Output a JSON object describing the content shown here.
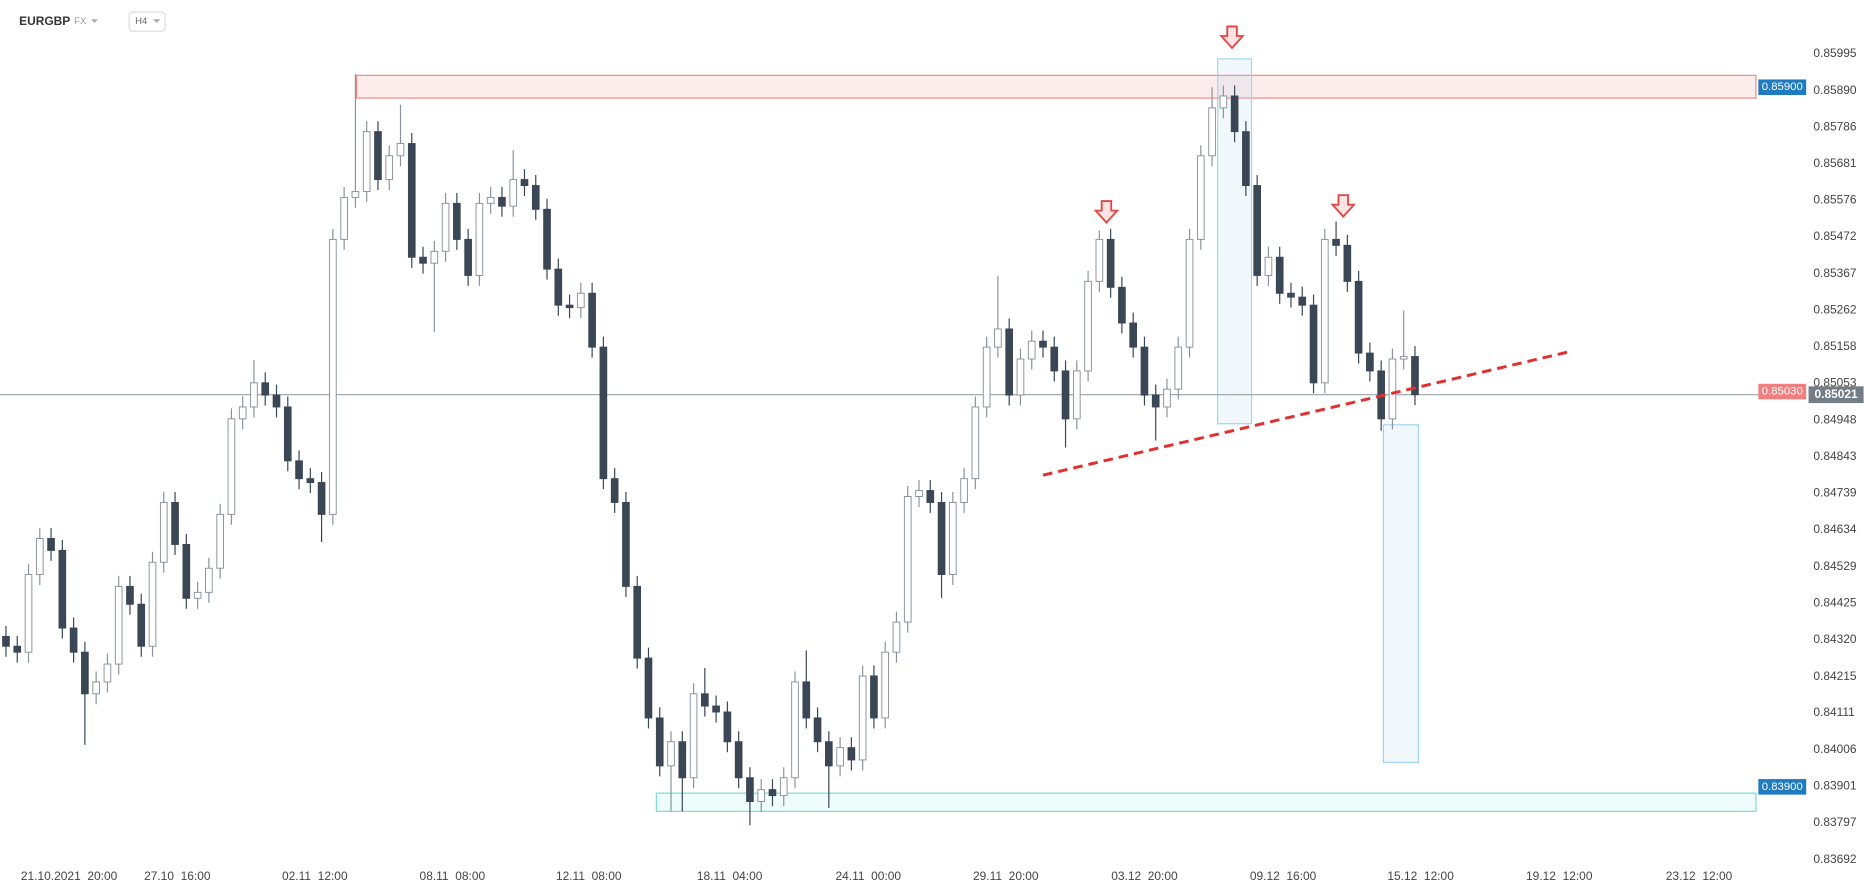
{
  "chart_data": {
    "type": "candlestick",
    "symbol": "EURGBP",
    "market": "FX",
    "timeframe": "H4",
    "up_color": "#ffffff",
    "up_stroke": "#8a939c",
    "down_color": "#3b4754",
    "grid": false,
    "open": [
      0.8433,
      0.84302,
      0.84285,
      0.84507,
      0.8461,
      0.84576,
      0.84354,
      0.84285,
      0.84166,
      0.842,
      0.84251,
      0.84473,
      0.84422,
      0.84302,
      0.84542,
      0.84713,
      0.84593,
      0.84439,
      0.84456,
      0.84525,
      0.84679,
      0.84952,
      0.84986,
      0.85055,
      0.8502,
      0.84986,
      0.84832,
      0.84781,
      0.8477,
      0.84679,
      0.85465,
      0.85585,
      0.85602,
      0.85773,
      0.85636,
      0.85704,
      0.85739,
      0.85414,
      0.85397,
      0.85431,
      0.85568,
      0.85465,
      0.85362,
      0.85568,
      0.85585,
      0.8556,
      0.85636,
      0.85619,
      0.85551,
      0.8538,
      0.85277,
      0.8527,
      0.85311,
      0.85157,
      0.84781,
      0.84713,
      0.84473,
      0.84268,
      0.84097,
      0.8396,
      0.84029,
      0.83926,
      0.84166,
      0.84131,
      0.84114,
      0.84029,
      0.83926,
      0.83858,
      0.83892,
      0.83875,
      0.83926,
      0.842,
      0.84097,
      0.84029,
      0.8396,
      0.84012,
      0.83977,
      0.84217,
      0.84097,
      0.84285,
      0.84371,
      0.8473,
      0.84747,
      0.84713,
      0.84507,
      0.84713,
      0.84781,
      0.84986,
      0.85157,
      0.85209,
      0.8502,
      0.85123,
      0.85174,
      0.85157,
      0.85089,
      0.84952,
      0.85089,
      0.85345,
      0.85465,
      0.85328,
      0.85226,
      0.85157,
      0.8502,
      0.84986,
      0.85037,
      0.85157,
      0.85465,
      0.85704,
      0.85841,
      0.85875,
      0.85773,
      0.85619,
      0.85362,
      0.85414,
      0.85311,
      0.853,
      0.85277,
      0.85055,
      0.85465,
      0.85448,
      0.85345,
      0.8514,
      0.85089,
      0.84952,
      0.85123,
      0.8513
    ],
    "high": [
      0.8436,
      0.84332,
      0.84537,
      0.8464,
      0.8464,
      0.84606,
      0.84384,
      0.84315,
      0.8423,
      0.84281,
      0.84503,
      0.84503,
      0.84452,
      0.84572,
      0.84743,
      0.84743,
      0.84623,
      0.84486,
      0.84555,
      0.84709,
      0.84982,
      0.85016,
      0.8512,
      0.85085,
      0.8505,
      0.85016,
      0.84862,
      0.84811,
      0.848,
      0.85495,
      0.85615,
      0.85937,
      0.85803,
      0.85803,
      0.85734,
      0.8585,
      0.85769,
      0.85444,
      0.85461,
      0.85598,
      0.85598,
      0.85495,
      0.85598,
      0.85615,
      0.85615,
      0.8572,
      0.85666,
      0.85649,
      0.85581,
      0.8541,
      0.85307,
      0.85341,
      0.85341,
      0.85187,
      0.84811,
      0.84743,
      0.84503,
      0.84298,
      0.84127,
      0.84059,
      0.84059,
      0.84196,
      0.8424,
      0.84161,
      0.84144,
      0.84059,
      0.83956,
      0.83922,
      0.83922,
      0.83956,
      0.8423,
      0.8429,
      0.84127,
      0.84059,
      0.84042,
      0.84042,
      0.84247,
      0.84247,
      0.84315,
      0.84401,
      0.8476,
      0.84777,
      0.84777,
      0.84743,
      0.84743,
      0.84811,
      0.85016,
      0.85187,
      0.8536,
      0.85239,
      0.85153,
      0.85204,
      0.85204,
      0.85187,
      0.85119,
      0.85119,
      0.85375,
      0.8549,
      0.85495,
      0.85358,
      0.85256,
      0.85187,
      0.8505,
      0.85067,
      0.85187,
      0.85495,
      0.85734,
      0.859,
      0.85905,
      0.85905,
      0.85803,
      0.85649,
      0.85444,
      0.85444,
      0.85341,
      0.8533,
      0.85307,
      0.85495,
      0.85516,
      0.85478,
      0.85375,
      0.8517,
      0.85119,
      0.85153,
      0.85262,
      0.8516
    ],
    "low": [
      0.84272,
      0.84255,
      0.84255,
      0.84477,
      0.84546,
      0.84324,
      0.84255,
      0.8402,
      0.84136,
      0.8417,
      0.84221,
      0.84392,
      0.84272,
      0.84272,
      0.84512,
      0.84563,
      0.84409,
      0.84409,
      0.84426,
      0.84495,
      0.84649,
      0.84922,
      0.84956,
      0.8499,
      0.84956,
      0.84802,
      0.84751,
      0.8474,
      0.846,
      0.84649,
      0.85435,
      0.85555,
      0.85572,
      0.85606,
      0.85606,
      0.85674,
      0.85384,
      0.85367,
      0.852,
      0.85401,
      0.85435,
      0.85332,
      0.85332,
      0.85538,
      0.8553,
      0.8553,
      0.85589,
      0.85521,
      0.8535,
      0.85247,
      0.8524,
      0.8524,
      0.85127,
      0.84751,
      0.84683,
      0.84443,
      0.84238,
      0.84067,
      0.8393,
      0.8383,
      0.8383,
      0.83896,
      0.84101,
      0.84084,
      0.83999,
      0.83896,
      0.8379,
      0.83828,
      0.83845,
      0.83845,
      0.83896,
      0.84067,
      0.83999,
      0.8384,
      0.8393,
      0.83947,
      0.83947,
      0.84067,
      0.84067,
      0.84255,
      0.84341,
      0.847,
      0.84683,
      0.8444,
      0.84477,
      0.84683,
      0.84751,
      0.84956,
      0.85127,
      0.8499,
      0.8499,
      0.85093,
      0.85127,
      0.85059,
      0.8487,
      0.84922,
      0.85059,
      0.85315,
      0.85298,
      0.85196,
      0.85127,
      0.8499,
      0.8489,
      0.84956,
      0.85007,
      0.85127,
      0.85435,
      0.85674,
      0.85811,
      0.85743,
      0.85589,
      0.85332,
      0.85332,
      0.85281,
      0.8527,
      0.85247,
      0.85025,
      0.85025,
      0.85418,
      0.85315,
      0.8511,
      0.85059,
      0.84918,
      0.84922,
      0.85093,
      0.84991
    ],
    "close": [
      0.84302,
      0.84285,
      0.84507,
      0.8461,
      0.84576,
      0.84354,
      0.84285,
      0.84166,
      0.842,
      0.84251,
      0.84473,
      0.84422,
      0.84302,
      0.84542,
      0.84713,
      0.84593,
      0.84439,
      0.84456,
      0.84525,
      0.84679,
      0.84952,
      0.84986,
      0.85055,
      0.8502,
      0.84986,
      0.84832,
      0.84781,
      0.8477,
      0.84679,
      0.85465,
      0.85585,
      0.85602,
      0.85773,
      0.85636,
      0.85704,
      0.85739,
      0.85414,
      0.85397,
      0.85431,
      0.85568,
      0.85465,
      0.85362,
      0.85568,
      0.85585,
      0.8556,
      0.85636,
      0.85619,
      0.85551,
      0.8538,
      0.85277,
      0.8527,
      0.85311,
      0.85157,
      0.84781,
      0.84713,
      0.84473,
      0.84268,
      0.84097,
      0.8396,
      0.84029,
      0.83926,
      0.84166,
      0.84131,
      0.84114,
      0.84029,
      0.83926,
      0.83858,
      0.83892,
      0.83875,
      0.83926,
      0.842,
      0.84097,
      0.84029,
      0.8396,
      0.84012,
      0.83977,
      0.84217,
      0.84097,
      0.84285,
      0.84371,
      0.8473,
      0.84747,
      0.84713,
      0.84507,
      0.84713,
      0.84781,
      0.84986,
      0.85157,
      0.85209,
      0.8502,
      0.85123,
      0.85174,
      0.85157,
      0.85089,
      0.84952,
      0.85089,
      0.85345,
      0.85465,
      0.85328,
      0.85226,
      0.85157,
      0.8502,
      0.84986,
      0.85037,
      0.85157,
      0.85465,
      0.85704,
      0.85841,
      0.85875,
      0.85773,
      0.85619,
      0.85362,
      0.85414,
      0.85311,
      0.853,
      0.85277,
      0.85055,
      0.85465,
      0.85448,
      0.85345,
      0.8514,
      0.85089,
      0.84952,
      0.85123,
      0.8513,
      0.85021
    ],
    "xlim": [
      -0.53,
      155.25
    ],
    "xticks": [
      {
        "value": 5.6,
        "label": "21.10.2021  20:00"
      },
      {
        "value": 15.2,
        "label": "27.10  16:00"
      },
      {
        "value": 27.4,
        "label": "02.11  12:00"
      },
      {
        "value": 39.6,
        "label": "08.11  08:00"
      },
      {
        "value": 51.7,
        "label": "12.11  08:00"
      },
      {
        "value": 64.2,
        "label": "18.11  04:00"
      },
      {
        "value": 76.5,
        "label": "24.11  00:00"
      },
      {
        "value": 88.7,
        "label": "29.11  20:00"
      },
      {
        "value": 101.0,
        "label": "03.12  20:00"
      },
      {
        "value": 113.3,
        "label": "09.12  16:00"
      },
      {
        "value": 125.5,
        "label": "15.12  12:00"
      },
      {
        "value": 137.8,
        "label": "19.12  12:00"
      },
      {
        "value": 150.2,
        "label": "23.12  12:00"
      }
    ],
    "ylim": [
      0.83687,
      0.86149
    ],
    "yticks": [
      0.85995,
      {
        "value": 0.8589,
        "label": "0.85890"
      },
      0.85786,
      0.85681,
      0.85576,
      0.85472,
      0.85367,
      0.85262,
      0.85158,
      0.85053,
      0.84948,
      0.84843,
      0.84739,
      0.84634,
      0.84529,
      0.84425,
      {
        "value": 0.8432,
        "label": "0.84320"
      },
      0.84215,
      0.84111,
      0.84006,
      0.83901,
      0.83797,
      0.83692
    ],
    "zones": [
      {
        "top": 0.85934,
        "bottom": 0.85869,
        "start": 31.1,
        "fill": "#fdecec",
        "stroke": "#f08a8a"
      },
      {
        "top": 0.83882,
        "bottom": 0.8383,
        "start": 57.7,
        "fill": "#eefcfb",
        "stroke": "#7fdad3"
      }
    ],
    "boxes": [
      {
        "top": 0.85981,
        "bottom": 0.84938,
        "start": 107.5,
        "end": 110.5
      },
      {
        "top": 0.84935,
        "bottom": 0.8397,
        "start": 122.2,
        "end": 125.3
      }
    ],
    "trendline": {
      "x": [
        92.0,
        138.7
      ],
      "y": [
        0.84791,
        0.85144
      ],
      "color": "#e03131"
    },
    "levels": [
      {
        "value": 0.859,
        "label": "0.85900",
        "color": "#1f7bc1"
      },
      {
        "value": 0.839,
        "label": "0.83900",
        "color": "#1f7bc1"
      },
      {
        "value": 0.8503,
        "label": "0.85030",
        "color": "#f08080"
      }
    ],
    "last_price": {
      "value": 0.85021,
      "label": "0.85021",
      "color": "#737d88"
    }
  }
}
